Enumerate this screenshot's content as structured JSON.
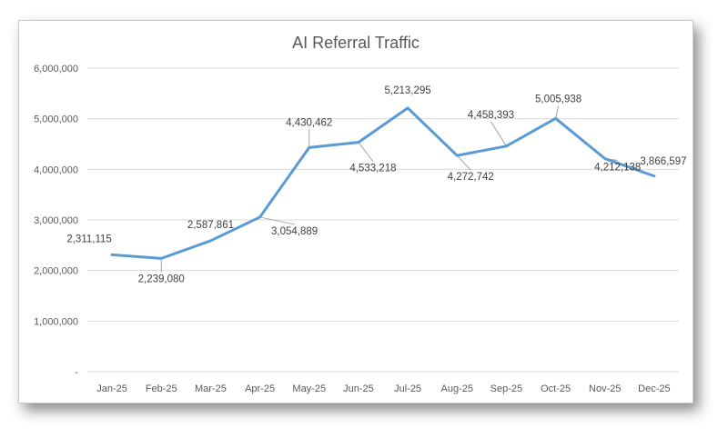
{
  "chart_data": {
    "type": "line",
    "title": "AI Referral Traffic",
    "xlabel": "",
    "ylabel": "",
    "categories": [
      "Jan-25",
      "Feb-25",
      "Mar-25",
      "Apr-25",
      "May-25",
      "Jun-25",
      "Jul-25",
      "Aug-25",
      "Sep-25",
      "Oct-25",
      "Nov-25",
      "Dec-25"
    ],
    "series": [
      {
        "values": [
          2311115,
          2239080,
          2587861,
          3054889,
          4430462,
          4533218,
          5213295,
          4272742,
          4458393,
          5005938,
          4212138,
          3866597
        ],
        "labels": [
          "2,311,115",
          "2,239,080",
          "2,587,861",
          "3,054,889",
          "4,430,462",
          "4,533,218",
          "5,213,295",
          "4,272,742",
          "4,458,393",
          "5,005,938",
          "4,212,138",
          "3,866,597"
        ],
        "color": "#5b9bd5"
      }
    ],
    "yticks": [
      {
        "value": 0,
        "label": "-"
      },
      {
        "value": 1000000,
        "label": "1,000,000"
      },
      {
        "value": 2000000,
        "label": "2,000,000"
      },
      {
        "value": 3000000,
        "label": "3,000,000"
      },
      {
        "value": 4000000,
        "label": "4,000,000"
      },
      {
        "value": 5000000,
        "label": "5,000,000"
      },
      {
        "value": 6000000,
        "label": "6,000,000"
      }
    ],
    "ylim": [
      0,
      6000000
    ],
    "grid": true,
    "legend": "none"
  }
}
